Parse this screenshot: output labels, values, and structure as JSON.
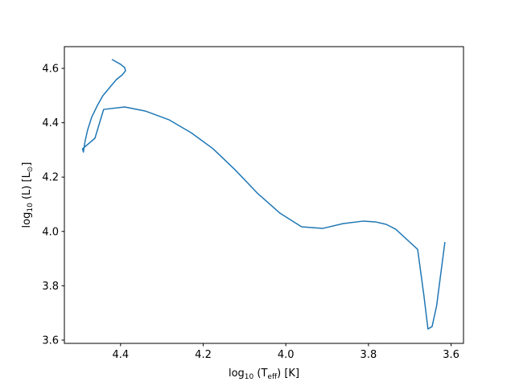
{
  "chart_data": {
    "type": "line",
    "xlabel": [
      {
        "text": "log"
      },
      {
        "text": "10",
        "sub": true
      },
      {
        "text": " (T"
      },
      {
        "text": "eff",
        "sub": true
      },
      {
        "text": ") [K]"
      }
    ],
    "ylabel": [
      {
        "text": "log"
      },
      {
        "text": "10",
        "sub": true
      },
      {
        "text": " (L) [L"
      },
      {
        "text": "⊙",
        "sub": true
      },
      {
        "text": "]"
      }
    ],
    "xlim": [
      4.536,
      3.57
    ],
    "ylim": [
      3.588,
      4.68
    ],
    "xticks": [
      4.4,
      4.2,
      {
        "value": 4.0,
        "label": "4.0"
      },
      3.8,
      3.6
    ],
    "yticks": [
      3.6,
      3.8,
      {
        "value": 4.0,
        "label": "4.0"
      },
      4.2,
      4.4,
      4.6
    ],
    "series": [
      {
        "color": "#1f77b4",
        "x": [
          4.421,
          4.4,
          4.39,
          4.388,
          4.396,
          4.41,
          4.425,
          4.443,
          4.456,
          4.47,
          4.48,
          4.486,
          4.49,
          4.492,
          4.462,
          4.441,
          4.39,
          4.34,
          4.283,
          4.229,
          4.176,
          4.123,
          4.069,
          4.014,
          3.962,
          3.911,
          3.861,
          3.812,
          3.783,
          3.757,
          3.734,
          3.681,
          3.666,
          3.656,
          3.646,
          3.635,
          3.615
        ],
        "values": [
          4.633,
          4.615,
          4.603,
          4.591,
          4.576,
          4.559,
          4.532,
          4.499,
          4.464,
          4.42,
          4.372,
          4.331,
          4.292,
          4.304,
          4.343,
          4.449,
          4.458,
          4.443,
          4.411,
          4.363,
          4.304,
          4.227,
          4.141,
          4.067,
          4.017,
          4.011,
          4.029,
          4.038,
          4.035,
          4.026,
          4.008,
          3.934,
          3.766,
          3.641,
          3.65,
          3.727,
          3.961
        ]
      }
    ]
  }
}
